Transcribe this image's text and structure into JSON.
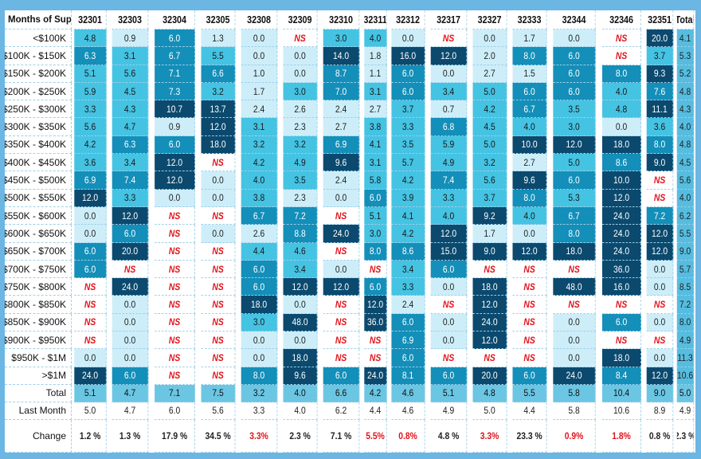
{
  "chart_data": {
    "type": "table",
    "corner_label": "Months of Supply",
    "columns": [
      "32301",
      "32303",
      "32304",
      "32305",
      "32308",
      "32309",
      "32310",
      "32311",
      "32312",
      "32317",
      "32327",
      "32333",
      "32344",
      "32346",
      "32351",
      "Total"
    ],
    "rows": [
      {
        "label": "<$100K",
        "values": [
          "4.8",
          "0.9",
          "6.0",
          "1.3",
          "0.0",
          "NS",
          "3.0",
          "4.0",
          "0.0",
          "NS",
          "0.0",
          "1.7",
          "0.0",
          "NS",
          "20.0",
          "4.1"
        ]
      },
      {
        "label": "$100K - $150K",
        "values": [
          "6.3",
          "3.1",
          "6.7",
          "5.5",
          "0.0",
          "0.0",
          "14.0",
          "1.8",
          "16.0",
          "12.0",
          "2.0",
          "8.0",
          "6.0",
          "NS",
          "3.7",
          "5.3"
        ]
      },
      {
        "label": "$150K - $200K",
        "values": [
          "5.1",
          "5.6",
          "7.1",
          "6.6",
          "1.0",
          "0.0",
          "8.7",
          "1.1",
          "6.0",
          "0.0",
          "2.7",
          "1.5",
          "6.0",
          "8.0",
          "9.3",
          "5.2"
        ]
      },
      {
        "label": "$200K - $250K",
        "values": [
          "5.9",
          "4.5",
          "7.3",
          "3.2",
          "1.7",
          "3.0",
          "7.0",
          "3.1",
          "6.0",
          "3.4",
          "5.0",
          "6.0",
          "6.0",
          "4.0",
          "7.6",
          "4.8"
        ]
      },
      {
        "label": "$250K - $300K",
        "values": [
          "3.3",
          "4.3",
          "10.7",
          "13.7",
          "2.4",
          "2.6",
          "2.4",
          "2.7",
          "3.7",
          "0.7",
          "4.2",
          "6.7",
          "3.5",
          "4.8",
          "11.1",
          "4.3"
        ]
      },
      {
        "label": "$300K - $350K",
        "values": [
          "5.6",
          "4.7",
          "0.9",
          "12.0",
          "3.1",
          "2.3",
          "2.7",
          "3.8",
          "3.3",
          "6.8",
          "4.5",
          "4.0",
          "3.0",
          "0.0",
          "3.6",
          "4.0"
        ]
      },
      {
        "label": "$350K - $400K",
        "values": [
          "4.2",
          "6.3",
          "6.0",
          "18.0",
          "3.2",
          "3.2",
          "6.9",
          "4.1",
          "3.5",
          "5.9",
          "5.0",
          "10.0",
          "12.0",
          "18.0",
          "8.0",
          "4.8"
        ]
      },
      {
        "label": "$400K - $450K",
        "values": [
          "3.6",
          "3.4",
          "12.0",
          "NS",
          "4.2",
          "4.9",
          "9.6",
          "3.1",
          "5.7",
          "4.9",
          "3.2",
          "2.7",
          "5.0",
          "8.6",
          "9.0",
          "4.5"
        ]
      },
      {
        "label": "$450K - $500K",
        "values": [
          "6.9",
          "7.4",
          "12.0",
          "0.0",
          "4.0",
          "3.5",
          "2.4",
          "5.8",
          "4.2",
          "7.4",
          "5.6",
          "9.6",
          "6.0",
          "10.0",
          "NS",
          "5.6"
        ]
      },
      {
        "label": "$500K - $550K",
        "values": [
          "12.0",
          "3.3",
          "0.0",
          "0.0",
          "3.8",
          "2.3",
          "0.0",
          "6.0",
          "3.9",
          "3.3",
          "3.7",
          "8.0",
          "5.3",
          "12.0",
          "NS",
          "4.0"
        ]
      },
      {
        "label": "$550K - $600K",
        "values": [
          "0.0",
          "12.0",
          "NS",
          "NS",
          "6.7",
          "7.2",
          "NS",
          "5.1",
          "4.1",
          "4.0",
          "9.2",
          "4.0",
          "6.7",
          "24.0",
          "7.2",
          "6.2"
        ]
      },
      {
        "label": "$600K - $650K",
        "values": [
          "0.0",
          "6.0",
          "NS",
          "0.0",
          "2.6",
          "8.8",
          "24.0",
          "3.0",
          "4.2",
          "12.0",
          "1.7",
          "0.0",
          "8.0",
          "24.0",
          "12.0",
          "5.5"
        ]
      },
      {
        "label": "$650K - $700K",
        "values": [
          "6.0",
          "20.0",
          "NS",
          "NS",
          "4.4",
          "4.6",
          "NS",
          "8.0",
          "8.6",
          "15.0",
          "9.0",
          "12.0",
          "18.0",
          "24.0",
          "12.0",
          "9.0"
        ]
      },
      {
        "label": "$700K - $750K",
        "values": [
          "6.0",
          "NS",
          "NS",
          "NS",
          "6.0",
          "3.4",
          "0.0",
          "NS",
          "3.4",
          "6.0",
          "NS",
          "NS",
          "NS",
          "36.0",
          "0.0",
          "5.7"
        ]
      },
      {
        "label": "$750K - $800K",
        "values": [
          "NS",
          "24.0",
          "NS",
          "NS",
          "6.0",
          "12.0",
          "12.0",
          "6.0",
          "3.3",
          "0.0",
          "18.0",
          "NS",
          "48.0",
          "16.0",
          "0.0",
          "8.5"
        ]
      },
      {
        "label": "$800K - $850K",
        "values": [
          "NS",
          "0.0",
          "NS",
          "NS",
          "18.0",
          "0.0",
          "NS",
          "12.0",
          "2.4",
          "NS",
          "12.0",
          "NS",
          "NS",
          "NS",
          "NS",
          "7.2"
        ]
      },
      {
        "label": "$850K - $900K",
        "values": [
          "NS",
          "0.0",
          "NS",
          "NS",
          "3.0",
          "48.0",
          "NS",
          "36.0",
          "6.0",
          "0.0",
          "24.0",
          "NS",
          "0.0",
          "6.0",
          "0.0",
          "8.0"
        ]
      },
      {
        "label": "$900K - $950K",
        "values": [
          "NS",
          "0.0",
          "NS",
          "NS",
          "0.0",
          "0.0",
          "NS",
          "NS",
          "6.9",
          "0.0",
          "12.0",
          "NS",
          "0.0",
          "NS",
          "NS",
          "4.9"
        ]
      },
      {
        "label": "$950K - $1M",
        "values": [
          "0.0",
          "0.0",
          "NS",
          "NS",
          "0.0",
          "18.0",
          "NS",
          "NS",
          "6.0",
          "NS",
          "NS",
          "NS",
          "0.0",
          "18.0",
          "0.0",
          "11.3"
        ]
      },
      {
        "label": ">$1M",
        "values": [
          "24.0",
          "6.0",
          "NS",
          "NS",
          "8.0",
          "9.6",
          "6.0",
          "24.0",
          "8.1",
          "6.0",
          "20.0",
          "6.0",
          "24.0",
          "8.4",
          "12.0",
          "10.6"
        ]
      }
    ],
    "summary_rows": [
      {
        "label": "Total",
        "values": [
          "5.1",
          "4.7",
          "7.1",
          "7.5",
          "3.2",
          "4.0",
          "6.6",
          "4.2",
          "4.6",
          "5.1",
          "4.8",
          "5.5",
          "5.8",
          "10.4",
          "9.0",
          "5.0"
        ]
      },
      {
        "label": "Last Month",
        "values": [
          "5.0",
          "4.7",
          "6.0",
          "5.6",
          "3.3",
          "4.0",
          "6.2",
          "4.4",
          "4.6",
          "4.9",
          "5.0",
          "4.4",
          "5.8",
          "10.6",
          "8.9",
          "4.9"
        ]
      },
      {
        "label": "Change",
        "values": [
          "1.2 %",
          "1.3 %",
          "17.9 %",
          "34.5 %",
          "3.3%",
          "2.3 %",
          "7.1 %",
          "5.5%",
          "0.8%",
          "4.8 %",
          "3.3%",
          "23.3 %",
          "0.9%",
          "1.8%",
          "0.8 %",
          "2.3 %"
        ],
        "negative": [
          false,
          false,
          false,
          false,
          true,
          false,
          false,
          true,
          true,
          false,
          true,
          false,
          true,
          true,
          false,
          false
        ]
      }
    ],
    "colors": {
      "light": "#cdeef9",
      "mid": "#45c3e3",
      "strong": "#138fb9",
      "dark": "#0b4a6e",
      "ns_text": "#e1131b",
      "border": "#6cb6e3"
    }
  }
}
